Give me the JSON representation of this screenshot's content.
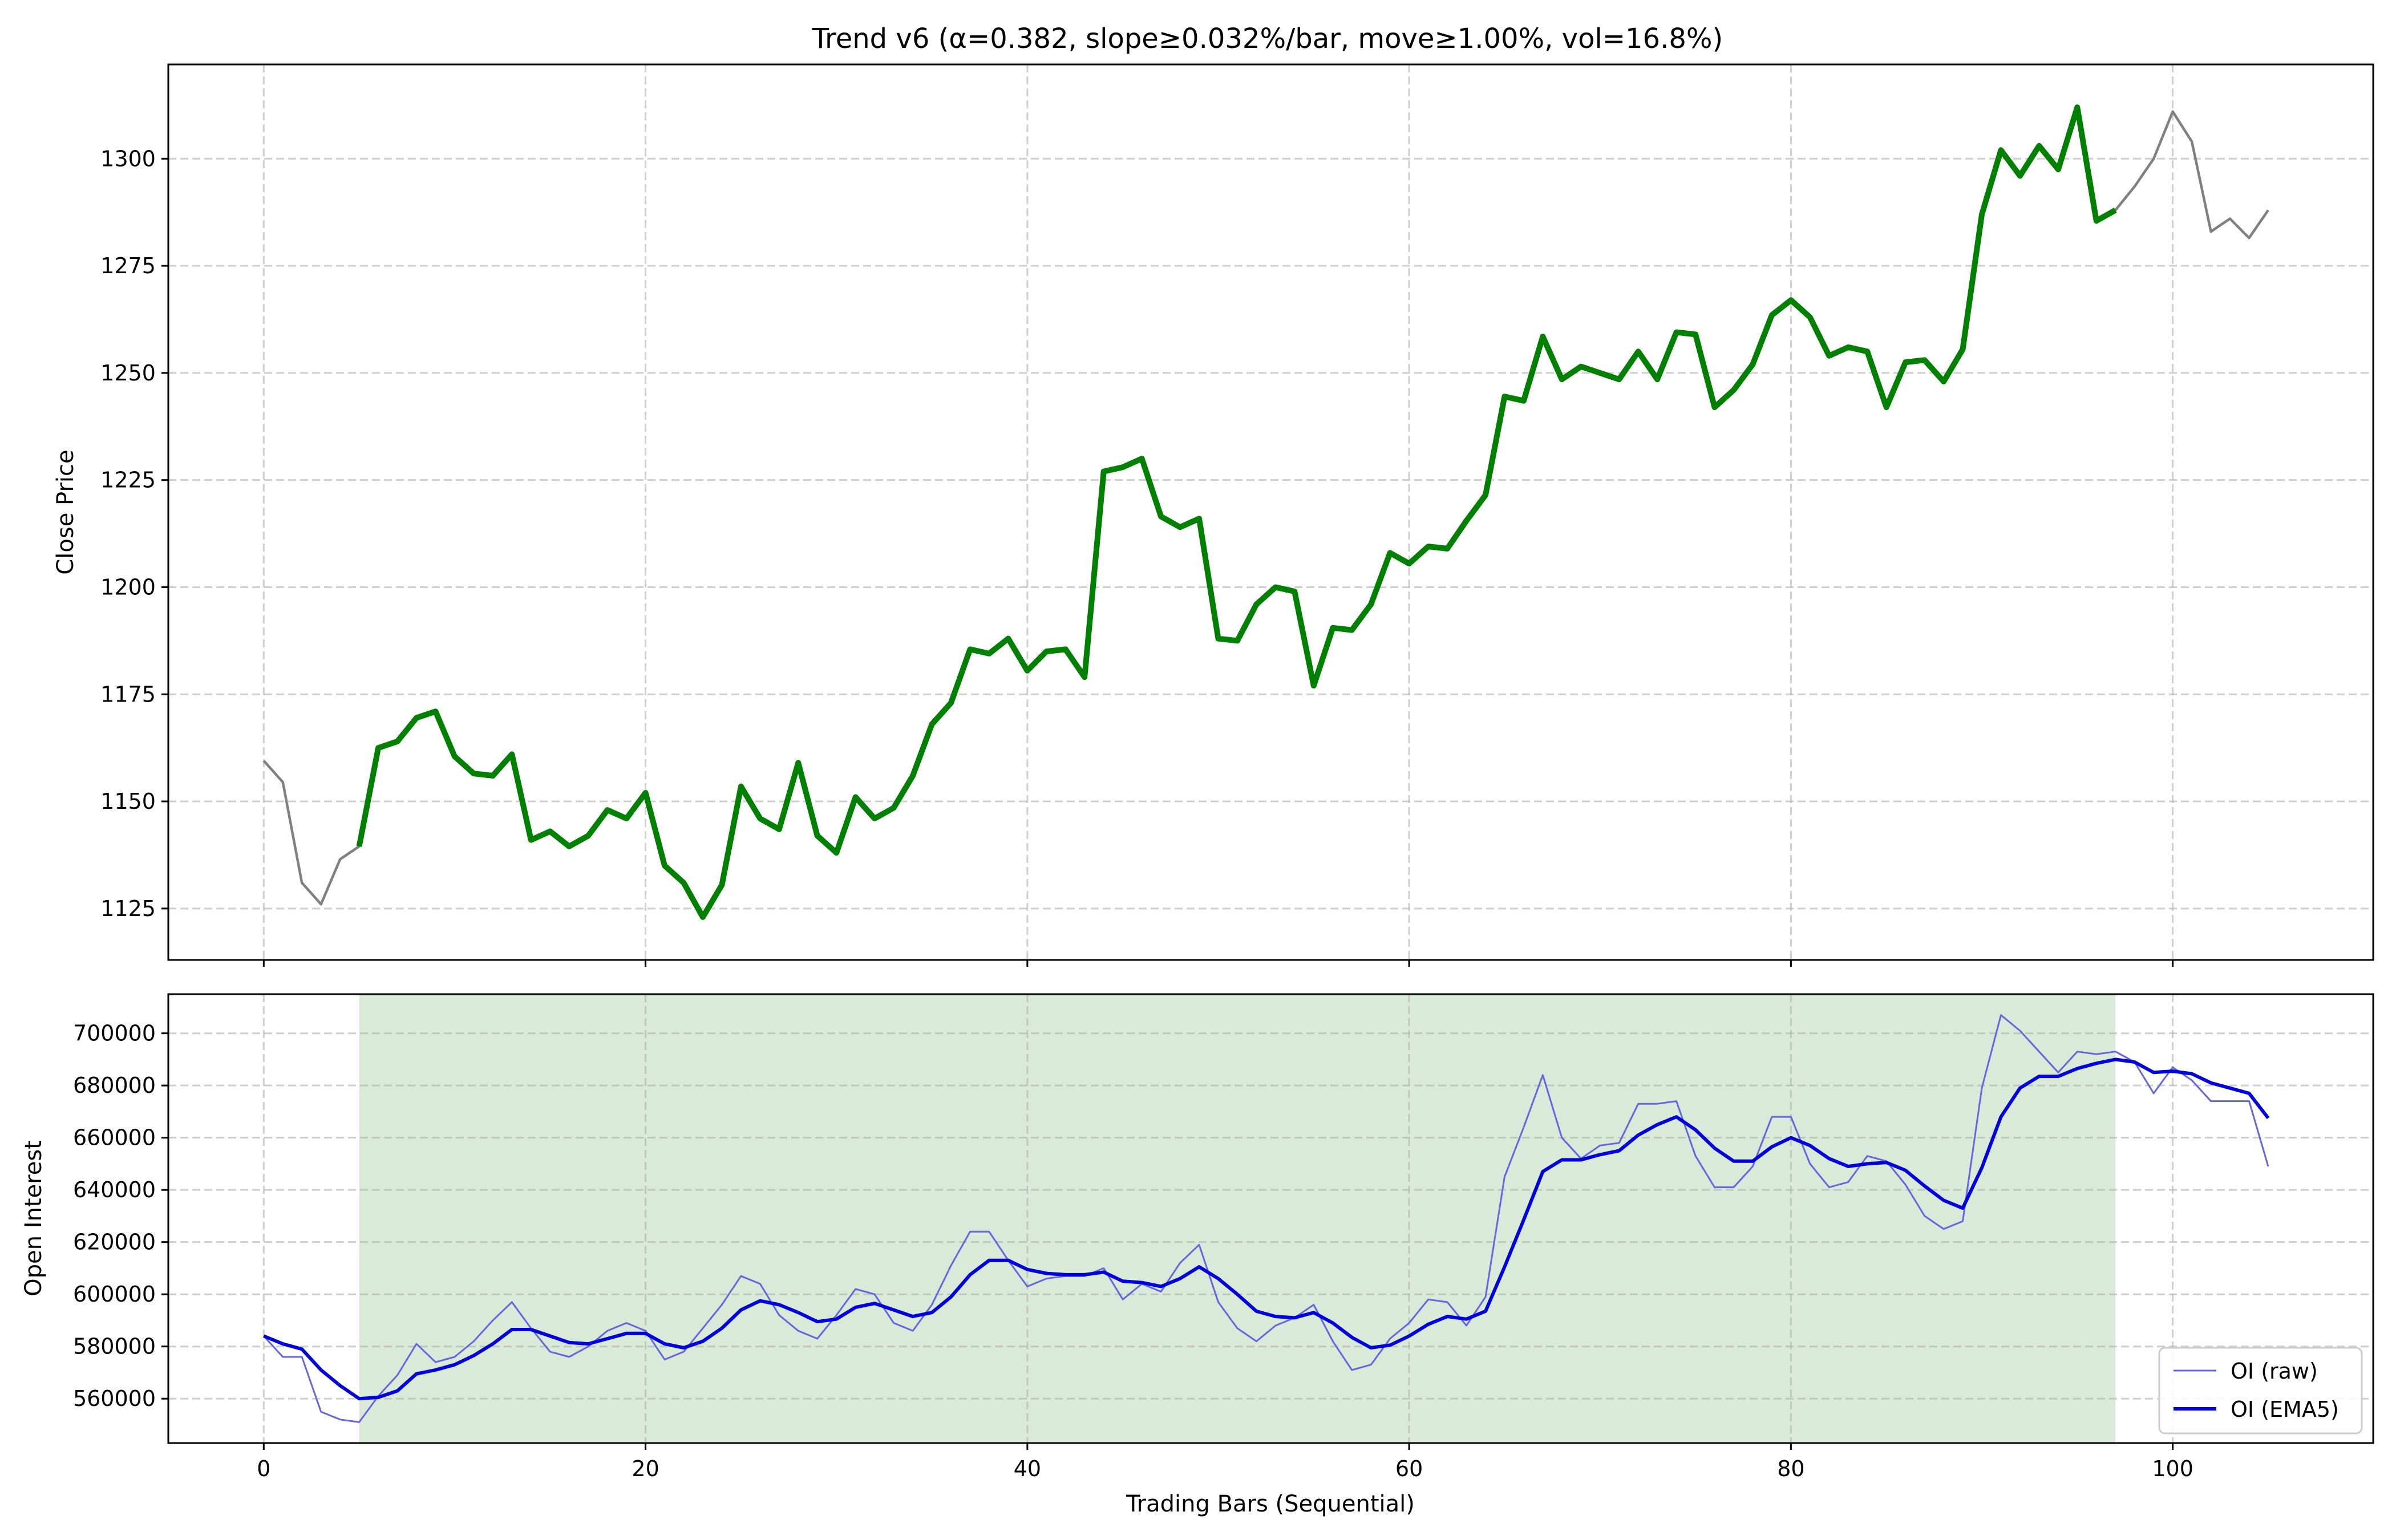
{
  "chart_data": [
    {
      "type": "line",
      "title": "Trend v6 (α=0.382, slope≥0.032%/bar, move≥1.00%, vol=16.8%)",
      "xlabel": "",
      "ylabel": "Close Price",
      "xlim": [
        -5,
        110.5
      ],
      "ylim": [
        1113,
        1322
      ],
      "grid": true,
      "x_ticks": [
        0,
        20,
        40,
        60,
        80,
        100
      ],
      "y_ticks": [
        1125,
        1150,
        1175,
        1200,
        1225,
        1250,
        1275,
        1300
      ],
      "highlight": {
        "x_start": 5,
        "x_end": 97,
        "color": "#008000"
      },
      "series": [
        {
          "color": "#808080",
          "x_start": 0,
          "values": [
            1159.5,
            1154.5,
            1131,
            1126,
            1136.5,
            1139.5,
            1162.5,
            1164,
            1169.5,
            1171,
            1160.5,
            1156.5,
            1156,
            1161,
            1141,
            1143,
            1139.5,
            1142,
            1148,
            1146,
            1152,
            1135,
            1131,
            1123,
            1130.5,
            1153.5,
            1146,
            1143.5,
            1159,
            1142,
            1138,
            1151,
            1146,
            1148.5,
            1156,
            1168,
            1173,
            1185.5,
            1184.5,
            1188,
            1180.5,
            1185,
            1185.5,
            1179,
            1227,
            1228,
            1230,
            1216.5,
            1214,
            1216,
            1188,
            1187.5,
            1196,
            1200,
            1199,
            1177,
            1190.5,
            1190,
            1196,
            1208,
            1205.5,
            1209.5,
            1209,
            1215.5,
            1221.5,
            1244.5,
            1243.5,
            1258.5,
            1248.5,
            1251.5,
            1250,
            1248.5,
            1255,
            1248.5,
            1259.5,
            1259,
            1242,
            1246,
            1252,
            1263.5,
            1267,
            1263,
            1254,
            1256,
            1255,
            1242,
            1252.5,
            1253,
            1248,
            1255.5,
            1287,
            1302,
            1296,
            1303,
            1297.5,
            1312,
            1285.5,
            1288,
            1293.5,
            1300,
            1311,
            1304,
            1283,
            1286,
            1281.5,
            1288
          ]
        }
      ]
    },
    {
      "type": "line",
      "title": "",
      "xlabel": "Trading Bars (Sequential)",
      "ylabel": "Open Interest",
      "xlim": [
        -5,
        110.5
      ],
      "ylim": [
        543000,
        715000
      ],
      "grid": true,
      "x_ticks": [
        0,
        20,
        40,
        60,
        80,
        100
      ],
      "y_ticks": [
        560000,
        580000,
        600000,
        620000,
        640000,
        660000,
        680000,
        700000
      ],
      "shaded_span": {
        "x_start": 5,
        "x_end": 97,
        "color": "#d9ebd8"
      },
      "legend": {
        "position": "lower-right",
        "entries": [
          "OI (raw)",
          "OI (EMA5)"
        ]
      },
      "series": [
        {
          "name": "OI (raw)",
          "color": "#6666e0",
          "x_start": 0,
          "values": [
            584000,
            576000,
            576000,
            555000,
            552000,
            551000,
            561000,
            569000,
            581000,
            574000,
            576000,
            582000,
            590000,
            597000,
            587000,
            578000,
            576000,
            580000,
            586000,
            589000,
            586000,
            575000,
            578000,
            587000,
            596000,
            607000,
            604000,
            592000,
            586000,
            583000,
            592000,
            602000,
            600000,
            589000,
            586000,
            596000,
            611000,
            624000,
            624000,
            613000,
            603000,
            606000,
            607000,
            607000,
            610000,
            598000,
            604000,
            601000,
            612000,
            619000,
            597000,
            587000,
            582000,
            588000,
            591000,
            596000,
            582000,
            571000,
            573000,
            583000,
            589000,
            598000,
            597000,
            588000,
            599000,
            645000,
            664000,
            684000,
            660000,
            652000,
            657000,
            658000,
            673000,
            673000,
            674000,
            653000,
            641000,
            641000,
            649000,
            668000,
            668000,
            650000,
            641000,
            643000,
            653000,
            651000,
            642000,
            630000,
            625000,
            628000,
            679000,
            707000,
            701000,
            693000,
            685000,
            693000,
            692000,
            693000,
            689000,
            677000,
            687000,
            682000,
            674000,
            674000,
            674000,
            649000
          ]
        },
        {
          "name": "OI (EMA5)",
          "color": "#0000dd",
          "x_start": 0,
          "values": [
            584000,
            581000,
            579000,
            571000,
            565000,
            560000,
            560500,
            563000,
            569500,
            571000,
            573000,
            576500,
            581000,
            586500,
            586500,
            584000,
            581500,
            581000,
            583000,
            585000,
            585000,
            581000,
            579500,
            582000,
            587000,
            594000,
            597500,
            596000,
            593000,
            589500,
            590500,
            595000,
            596500,
            594000,
            591500,
            593000,
            599000,
            607500,
            613000,
            613000,
            609500,
            608000,
            607500,
            607500,
            608500,
            605000,
            604500,
            603000,
            606000,
            610500,
            606000,
            600000,
            593500,
            591500,
            591000,
            593000,
            589000,
            583500,
            579500,
            580500,
            584000,
            588500,
            591500,
            590500,
            593500,
            610500,
            628500,
            647000,
            651500,
            651500,
            653500,
            655000,
            661000,
            665000,
            668000,
            663000,
            656000,
            651000,
            651000,
            656500,
            660000,
            657000,
            652000,
            649000,
            650000,
            650500,
            647500,
            641500,
            636000,
            633000,
            648500,
            668000,
            679000,
            683500,
            683500,
            686500,
            688500,
            690000,
            689000,
            685000,
            685500,
            684500,
            681000,
            679000,
            677000,
            667500
          ]
        }
      ]
    }
  ]
}
